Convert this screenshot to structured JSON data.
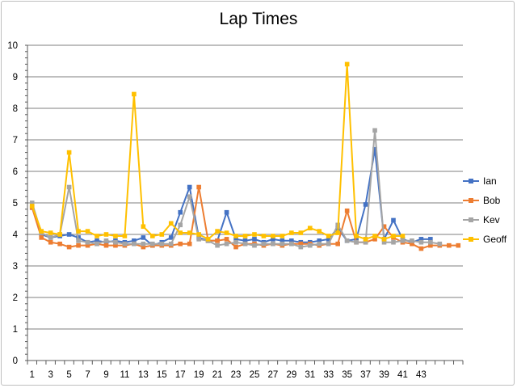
{
  "chart_data": {
    "type": "line",
    "title": "Lap Times",
    "xlabel": "",
    "ylabel": "",
    "ylim": [
      0,
      10
    ],
    "yticks": [
      0,
      1,
      2,
      3,
      4,
      5,
      6,
      7,
      8,
      9,
      10
    ],
    "x": [
      1,
      2,
      3,
      4,
      5,
      6,
      7,
      8,
      9,
      10,
      11,
      12,
      13,
      14,
      15,
      16,
      17,
      18,
      19,
      20,
      21,
      22,
      23,
      24,
      25,
      26,
      27,
      28,
      29,
      30,
      31,
      32,
      33,
      34,
      35,
      36,
      37,
      38,
      39,
      40,
      41,
      42,
      43,
      44,
      45,
      46,
      47
    ],
    "xtick_labels": [
      "1",
      "3",
      "5",
      "7",
      "9",
      "11",
      "13",
      "15",
      "17",
      "19",
      "21",
      "23",
      "25",
      "27",
      "29",
      "31",
      "33",
      "35",
      "37",
      "39",
      "41",
      "43"
    ],
    "xtick_values": [
      1,
      3,
      5,
      7,
      9,
      11,
      13,
      15,
      17,
      19,
      21,
      23,
      25,
      27,
      29,
      31,
      33,
      35,
      37,
      39,
      41,
      43
    ],
    "grid": true,
    "legend_position": "right",
    "series": [
      {
        "name": "Ian",
        "color": "#4472C4",
        "values": [
          4.85,
          4.0,
          3.9,
          3.95,
          4.0,
          3.9,
          3.75,
          3.8,
          3.75,
          3.8,
          3.75,
          3.8,
          3.9,
          3.65,
          3.75,
          3.9,
          4.7,
          5.5,
          3.9,
          3.8,
          3.8,
          4.7,
          3.85,
          3.8,
          3.85,
          3.75,
          3.85,
          3.8,
          3.8,
          3.75,
          3.75,
          3.8,
          3.85,
          4.2,
          3.8,
          3.85,
          4.95,
          6.7,
          3.85,
          4.45,
          3.85,
          3.75,
          3.85,
          3.85,
          null,
          null,
          null
        ]
      },
      {
        "name": "Bob",
        "color": "#ED7D31",
        "values": [
          4.85,
          3.9,
          3.75,
          3.7,
          3.6,
          3.65,
          3.65,
          3.7,
          3.65,
          3.65,
          3.65,
          3.7,
          3.6,
          3.65,
          3.65,
          3.65,
          3.7,
          3.7,
          5.5,
          3.8,
          3.8,
          3.85,
          3.6,
          3.7,
          3.7,
          3.65,
          3.7,
          3.65,
          3.7,
          3.7,
          3.7,
          3.65,
          3.7,
          3.7,
          4.75,
          3.75,
          3.75,
          3.85,
          4.25,
          3.9,
          3.75,
          3.7,
          3.55,
          3.65,
          3.65,
          3.65,
          3.65
        ]
      },
      {
        "name": "Kev",
        "color": "#A5A5A5",
        "values": [
          5.0,
          4.05,
          3.9,
          4.0,
          5.5,
          3.8,
          3.75,
          3.7,
          3.8,
          3.75,
          3.7,
          3.7,
          3.7,
          3.7,
          3.7,
          3.7,
          4.3,
          5.2,
          3.85,
          3.8,
          3.65,
          3.7,
          3.75,
          3.7,
          3.65,
          3.7,
          3.7,
          3.7,
          3.7,
          3.6,
          3.65,
          3.7,
          3.7,
          4.3,
          3.8,
          3.75,
          3.75,
          7.3,
          3.75,
          3.75,
          3.8,
          3.8,
          3.75,
          3.75,
          3.7,
          null,
          null
        ]
      },
      {
        "name": "Geoff",
        "color": "#FFC000",
        "values": [
          4.9,
          4.1,
          4.05,
          4.0,
          6.6,
          4.1,
          4.1,
          3.95,
          4.0,
          3.95,
          3.95,
          8.45,
          4.25,
          3.95,
          4.0,
          4.35,
          4.05,
          4.05,
          4.0,
          3.85,
          4.1,
          4.05,
          3.95,
          3.95,
          4.0,
          3.95,
          3.95,
          3.95,
          4.05,
          4.05,
          4.2,
          4.1,
          3.95,
          4.05,
          9.4,
          3.95,
          3.85,
          3.95,
          3.85,
          3.95,
          3.95,
          null,
          null,
          null,
          null,
          null,
          null
        ]
      }
    ]
  }
}
